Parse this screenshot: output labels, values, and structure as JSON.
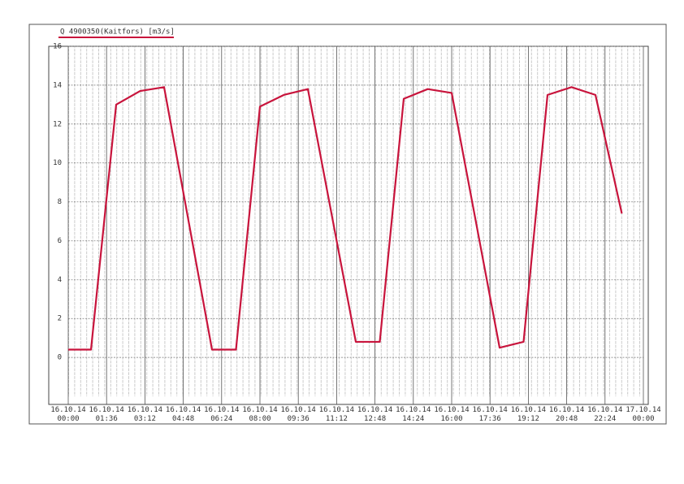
{
  "chart_data": {
    "type": "line",
    "title": "Q 4900350(Kaitfors) [m3/s]",
    "x": [
      0,
      0.95,
      2.0,
      3.0,
      4.0,
      6.0,
      7.0,
      8.0,
      9.0,
      10.0,
      12.0,
      13.0,
      14.0,
      15.0,
      16.0,
      18.0,
      19.0,
      20.0,
      21.0,
      22.0,
      23.1
    ],
    "series": [
      {
        "name": "Q 4900350(Kaitfors) [m3/s]",
        "color": "#c8143c",
        "values": [
          0.4,
          0.4,
          13.0,
          13.7,
          13.9,
          0.4,
          0.4,
          12.9,
          13.5,
          13.8,
          0.8,
          0.8,
          13.3,
          13.8,
          13.6,
          0.5,
          0.8,
          13.5,
          13.9,
          13.5,
          7.4
        ]
      }
    ],
    "xlim": [
      0,
      24
    ],
    "xticks": [
      {
        "value": 0,
        "label": "16.10.14 00:00"
      },
      {
        "value": 1.6,
        "label": "16.10.14 01:36"
      },
      {
        "value": 3.2,
        "label": "16.10.14 03:12"
      },
      {
        "value": 4.8,
        "label": "16.10.14 04:48"
      },
      {
        "value": 6.4,
        "label": "16.10.14 06:24"
      },
      {
        "value": 8,
        "label": "16.10.14 08:00"
      },
      {
        "value": 9.6,
        "label": "16.10.14 09:36"
      },
      {
        "value": 11.2,
        "label": "16.10.14 11:12"
      },
      {
        "value": 12.8,
        "label": "16.10.14 12:48"
      },
      {
        "value": 14.4,
        "label": "16.10.14 14:24"
      },
      {
        "value": 16,
        "label": "16.10.14 16:00"
      },
      {
        "value": 17.6,
        "label": "16.10.14 17:36"
      },
      {
        "value": 19.2,
        "label": "16.10.14 19:12"
      },
      {
        "value": 20.8,
        "label": "16.10.14 20:48"
      },
      {
        "value": 22.4,
        "label": "16.10.14 22:24"
      },
      {
        "value": 24,
        "label": "17.10.14 00:00"
      }
    ],
    "ylim": [
      -2,
      16
    ],
    "yticks": [
      0,
      2,
      4,
      6,
      8,
      10,
      12,
      14,
      16
    ],
    "grid": true
  }
}
